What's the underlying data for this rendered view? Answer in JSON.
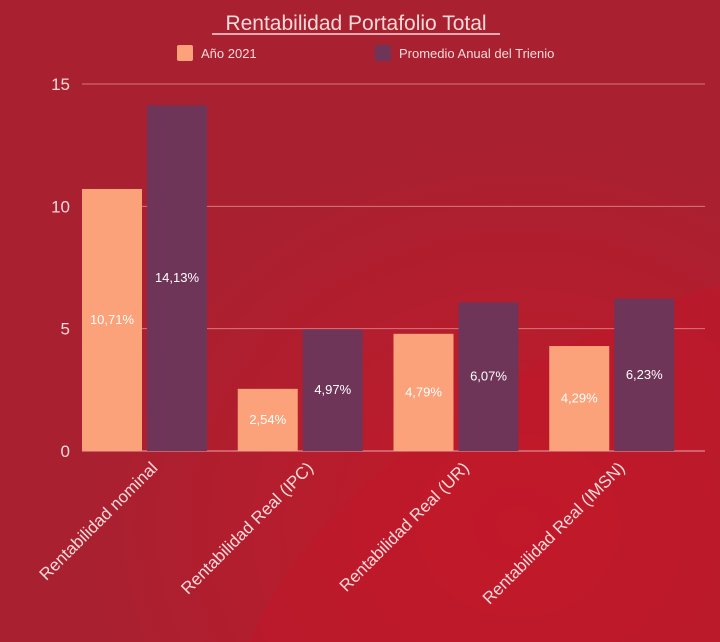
{
  "chart_data": {
    "type": "bar",
    "title": "Rentabilidad Portafolio Total",
    "categories": [
      "Rentabilidad nominal",
      "Rentabilidad Real (IPC)",
      "Rentabilidad Real (UR)",
      "Rentabilidad Real (IMSN)"
    ],
    "series": [
      {
        "name": "Año 2021",
        "values": [
          10.71,
          2.54,
          4.79,
          4.29
        ],
        "labels": [
          "10,71%",
          "2,54%",
          "4,79%",
          "4,29%"
        ],
        "color": "#fba27a"
      },
      {
        "name": "Promedio Anual del Trienio",
        "values": [
          14.13,
          4.97,
          6.07,
          6.23
        ],
        "labels": [
          "14,13%",
          "4,97%",
          "6,07%",
          "6,23%"
        ],
        "color": "#6e3559"
      }
    ],
    "y_ticks": [
      "0",
      "5",
      "10",
      "15"
    ],
    "ylim": [
      0,
      15
    ],
    "grid": true,
    "legend_position": "top",
    "colors": {
      "background": "#b01f2e",
      "text": "#f6d9d9",
      "grid": "#d9767e"
    }
  }
}
